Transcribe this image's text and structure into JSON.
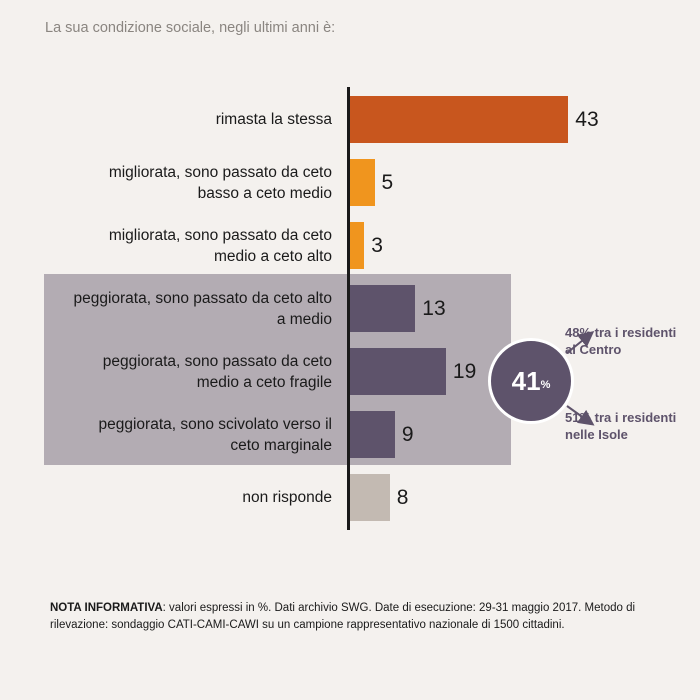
{
  "title": "La sua condizione sociale, negli ultimi anni è:",
  "chart_data": {
    "type": "bar",
    "orientation": "horizontal",
    "title": "La sua condizione sociale, negli ultimi anni è:",
    "categories": [
      "rimasta la stessa",
      "migliorata, sono passato da ceto basso a ceto medio",
      "migliorata, sono passato da ceto medio a ceto alto",
      "peggiorata, sono passato da ceto alto a medio",
      "peggiorata, sono passato da ceto medio a ceto fragile",
      "peggiorata, sono scivolato verso il ceto marginale",
      "non risponde"
    ],
    "label_lines": [
      [
        "rimasta la stessa"
      ],
      [
        "migliorata, sono passato da ceto",
        "basso a ceto medio"
      ],
      [
        "migliorata, sono passato da ceto",
        "medio a ceto alto"
      ],
      [
        "peggiorata, sono passato da ceto alto",
        "a medio"
      ],
      [
        "peggiorata, sono passato da ceto",
        "medio a ceto fragile"
      ],
      [
        "peggiorata, sono scivolato verso il",
        "ceto marginale"
      ],
      [
        "non risponde"
      ]
    ],
    "values": [
      43,
      5,
      3,
      13,
      19,
      9,
      8
    ],
    "colors": [
      "#c8561e",
      "#f0951e",
      "#f0951e",
      "#5e536b",
      "#5e536b",
      "#5e536b",
      "#c3bab2"
    ],
    "xlim": [
      0,
      50
    ],
    "grid": false,
    "legend": "none"
  },
  "summary": {
    "value": "41",
    "unit": "%",
    "color": "#5e536b"
  },
  "callouts": [
    [
      "48% tra i residenti",
      "al Centro"
    ],
    [
      "51% tra i residenti",
      "nelle Isole"
    ]
  ],
  "note": {
    "label": "NOTA INFORMATIVA",
    "text": ": valori espressi in %. Dati archivio SWG. Date di esecuzione: 29-31 maggio 2017. Metodo di rilevazione: sondaggio CATI-CAMI-CAWI su un campione rappresentativo nazionale di 1500 cittadini."
  }
}
